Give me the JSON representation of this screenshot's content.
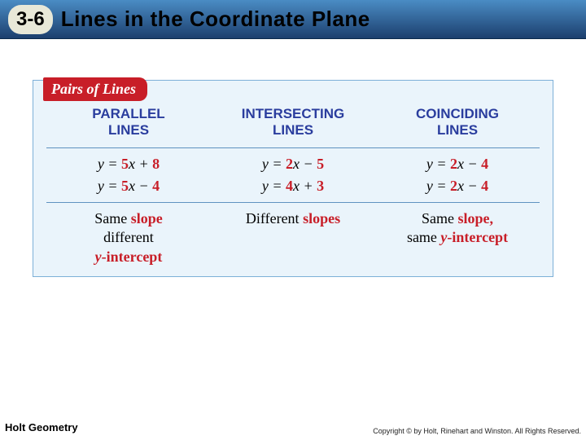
{
  "header": {
    "section": "3-6",
    "title": "Lines in the Coordinate Plane"
  },
  "card": {
    "tab": "Pairs of Lines",
    "columns": [
      {
        "title_l1": "PARALLEL",
        "title_l2": "LINES",
        "eq1_pre": "y = ",
        "eq1_coef": "5",
        "eq1_mid": "x + ",
        "eq1_c": "8",
        "eq2_pre": "y = ",
        "eq2_coef": "5",
        "eq2_mid": "x − ",
        "eq2_c": "4",
        "desc_plain_1": "Same ",
        "desc_hl_1": "slope",
        "desc_plain_2": " different ",
        "desc_hli": "y",
        "desc_hl_2": "-intercept"
      },
      {
        "title_l1": "INTERSECTING",
        "title_l2": "LINES",
        "eq1_pre": "y = ",
        "eq1_coef": "2",
        "eq1_mid": "x − ",
        "eq1_c": "5",
        "eq2_pre": "y = ",
        "eq2_coef": "4",
        "eq2_mid": "x + ",
        "eq2_c": "3",
        "desc_plain_1": "Different ",
        "desc_hl_1": "slopes",
        "desc_plain_2": "",
        "desc_hli": "",
        "desc_hl_2": ""
      },
      {
        "title_l1": "COINCIDING",
        "title_l2": "LINES",
        "eq1_pre": "y = ",
        "eq1_coef": "2",
        "eq1_mid": "x − ",
        "eq1_c": "4",
        "eq2_pre": "y = ",
        "eq2_coef": "2",
        "eq2_mid": "x − ",
        "eq2_c": "4",
        "desc_plain_1": "Same ",
        "desc_hl_1": "slope,",
        "desc_plain_2": " same ",
        "desc_hli": "y",
        "desc_hl_2": "-intercept"
      }
    ]
  },
  "footer": {
    "left": "Holt Geometry",
    "right": "Copyright © by Holt, Rinehart and Winston. All Rights Reserved."
  },
  "colors": {
    "header_gradient_top": "#4a8cc4",
    "header_gradient_bottom": "#1c3f6e",
    "pill_bg": "#e8e8d8",
    "card_bg": "#eaf4fb",
    "card_border": "#7db0d8",
    "tab_bg": "#c81e28",
    "col_title": "#2a3d9e",
    "accent_red": "#c81e28",
    "rule": "#5f92c0"
  }
}
